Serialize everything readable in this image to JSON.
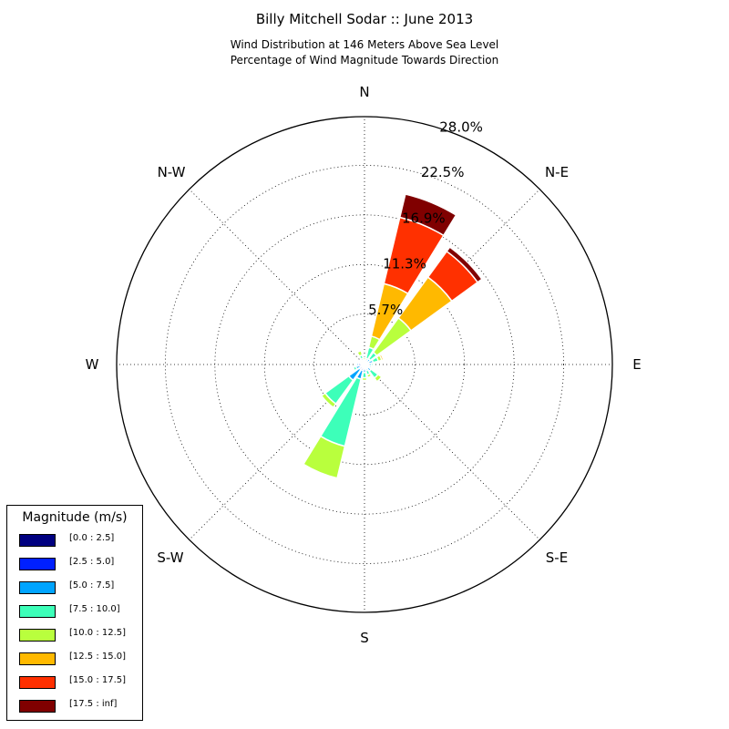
{
  "title": "Billy Mitchell Sodar :: June 2013",
  "subtitle_line1": "Wind Distribution at 146 Meters Above Sea Level",
  "subtitle_line2": "Percentage of Wind Magnitude Towards Direction",
  "legend": {
    "title": "Magnitude (m/s)",
    "items": [
      {
        "label": "[0.0 : 2.5]",
        "color": "#000080"
      },
      {
        "label": "[2.5 : 5.0]",
        "color": "#0020ff"
      },
      {
        "label": "[5.0 : 7.5]",
        "color": "#00a4ff"
      },
      {
        "label": "[7.5 : 10.0]",
        "color": "#3dffb9"
      },
      {
        "label": "[10.0 : 12.5]",
        "color": "#b9ff3d"
      },
      {
        "label": "[12.5 : 15.0]",
        "color": "#ffb900"
      },
      {
        "label": "[15.0 : 17.5]",
        "color": "#ff3000"
      },
      {
        "label": "[17.5 : inf]",
        "color": "#800000"
      }
    ]
  },
  "chart_data": {
    "type": "windrose",
    "direction_labels": [
      "N",
      "N-E",
      "E",
      "S-E",
      "S",
      "S-W",
      "W",
      "N-W"
    ],
    "radial_tick_labels": [
      "5.7%",
      "11.3%",
      "16.9%",
      "22.5%",
      "28.0%"
    ],
    "radial_ticks": [
      5.7,
      11.3,
      16.9,
      22.5,
      28.0
    ],
    "rmax": 28.0,
    "grid": true,
    "legend_position": "lower-left",
    "bins": [
      "[0.0 : 2.5]",
      "[2.5 : 5.0]",
      "[5.0 : 7.5]",
      "[7.5 : 10.0]",
      "[10.0 : 12.5]",
      "[12.5 : 15.0]",
      "[15.0 : 17.5]",
      "[17.5 : inf]"
    ],
    "sectors": [
      {
        "direction_deg": 0,
        "values": [
          0.2,
          0.1,
          0.1,
          0.1,
          0.3,
          0,
          0,
          0
        ]
      },
      {
        "direction_deg": 22.5,
        "values": [
          0.2,
          0.2,
          0.3,
          1.3,
          1.3,
          6.1,
          7.7,
          2.7
        ]
      },
      {
        "direction_deg": 45,
        "values": [
          0.2,
          0.2,
          0.4,
          0.9,
          4.8,
          5.7,
          3.6,
          0.6
        ]
      },
      {
        "direction_deg": 67.5,
        "values": [
          0.2,
          0.3,
          0.5,
          0.6,
          0.4,
          0.2,
          0,
          0
        ]
      },
      {
        "direction_deg": 90,
        "values": [
          0.2,
          0.3,
          0.3,
          0.2,
          0,
          0,
          0,
          0
        ]
      },
      {
        "direction_deg": 112.5,
        "values": [
          0.2,
          0.2,
          0.2,
          0.2,
          0,
          0,
          0,
          0
        ]
      },
      {
        "direction_deg": 135,
        "values": [
          0.2,
          0.3,
          0.4,
          1.0,
          0.5,
          0,
          0,
          0
        ]
      },
      {
        "direction_deg": 157.5,
        "values": [
          0.2,
          0.2,
          0.3,
          0.5,
          0.3,
          0,
          0,
          0
        ]
      },
      {
        "direction_deg": 180,
        "values": [
          0.2,
          0.3,
          0.4,
          0.6,
          0.3,
          0,
          0,
          0
        ]
      },
      {
        "direction_deg": 202.5,
        "values": [
          0.2,
          0.5,
          1.0,
          7.8,
          3.7,
          0,
          0,
          0
        ]
      },
      {
        "direction_deg": 225,
        "values": [
          0.2,
          0.5,
          1.5,
          3.3,
          0.5,
          0,
          0,
          0
        ]
      },
      {
        "direction_deg": 247.5,
        "values": [
          0.2,
          0.3,
          0.5,
          0.3,
          0,
          0,
          0,
          0
        ]
      },
      {
        "direction_deg": 270,
        "values": [
          0.2,
          0.5,
          0.2,
          0,
          0,
          0,
          0,
          0
        ]
      },
      {
        "direction_deg": 292.5,
        "values": [
          0.2,
          0.2,
          0.2,
          0,
          0,
          0,
          0,
          0
        ]
      },
      {
        "direction_deg": 315,
        "values": [
          0.2,
          0.2,
          0.1,
          0.1,
          0,
          0,
          0,
          0
        ]
      },
      {
        "direction_deg": 337.5,
        "values": [
          0.2,
          0.3,
          0.2,
          0.4,
          0.5,
          0,
          0,
          0
        ]
      }
    ]
  }
}
